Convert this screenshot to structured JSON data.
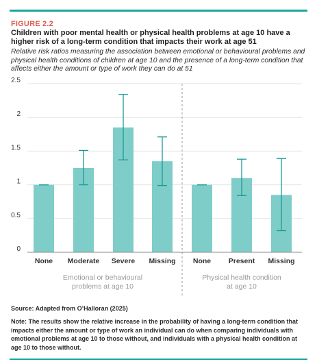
{
  "figure": {
    "label": "FIGURE 2.2",
    "title": "Children with poor mental health or physical health problems at age 10 have a higher risk of a long-term condition that impacts their work at age 51",
    "subtitle": "Relative risk ratios measuring the association between emotional or behavioural problems and physical health conditions of children at age 10 and the presence of a long-term condition that affects either the amount or type of work they can do at 51",
    "source": "Source: Adapted from O’Halloran (2025)",
    "note": "Note: The results show the relative increase in the probability of having a long-term condition that impacts either the amount or type of work an individual can do when comparing individuals with emotional problems at age 10 to those without, and individuals with a physical health condition at age 10 to those without."
  },
  "colors": {
    "accent": "#1aa6a0",
    "label_red": "#e0584b",
    "bar": "#7ecdc9",
    "error_bar": "#1a9a94",
    "group_label": "#9a9a9a"
  },
  "chart_data": {
    "type": "bar",
    "ylim": [
      0,
      2.5
    ],
    "yticks": [
      "0",
      "0.5",
      "1",
      "1.5",
      "2",
      "2.5"
    ],
    "ytick_values": [
      0,
      0.5,
      1,
      1.5,
      2,
      2.5
    ],
    "grid": true,
    "groups": [
      {
        "name": "Emotional or behavioural problems at age 10",
        "lines": [
          "Emotional or behavioural",
          "problems at age 10"
        ]
      },
      {
        "name": "Physical health condition at age 10",
        "lines": [
          "Physical health condition",
          "at age 10"
        ]
      }
    ],
    "bars": [
      {
        "group": 0,
        "category": "None",
        "value": 1.0,
        "ci_low": 1.0,
        "ci_high": 1.0
      },
      {
        "group": 0,
        "category": "Moderate",
        "value": 1.25,
        "ci_low": 1.0,
        "ci_high": 1.51
      },
      {
        "group": 0,
        "category": "Severe",
        "value": 1.85,
        "ci_low": 1.37,
        "ci_high": 2.34
      },
      {
        "group": 0,
        "category": "Missing",
        "value": 1.35,
        "ci_low": 0.99,
        "ci_high": 1.71
      },
      {
        "group": 1,
        "category": "None",
        "value": 1.0,
        "ci_low": 1.0,
        "ci_high": 1.0
      },
      {
        "group": 1,
        "category": "Present",
        "value": 1.1,
        "ci_low": 0.84,
        "ci_high": 1.38
      },
      {
        "group": 1,
        "category": "Missing",
        "value": 0.85,
        "ci_low": 0.32,
        "ci_high": 1.39
      }
    ]
  }
}
